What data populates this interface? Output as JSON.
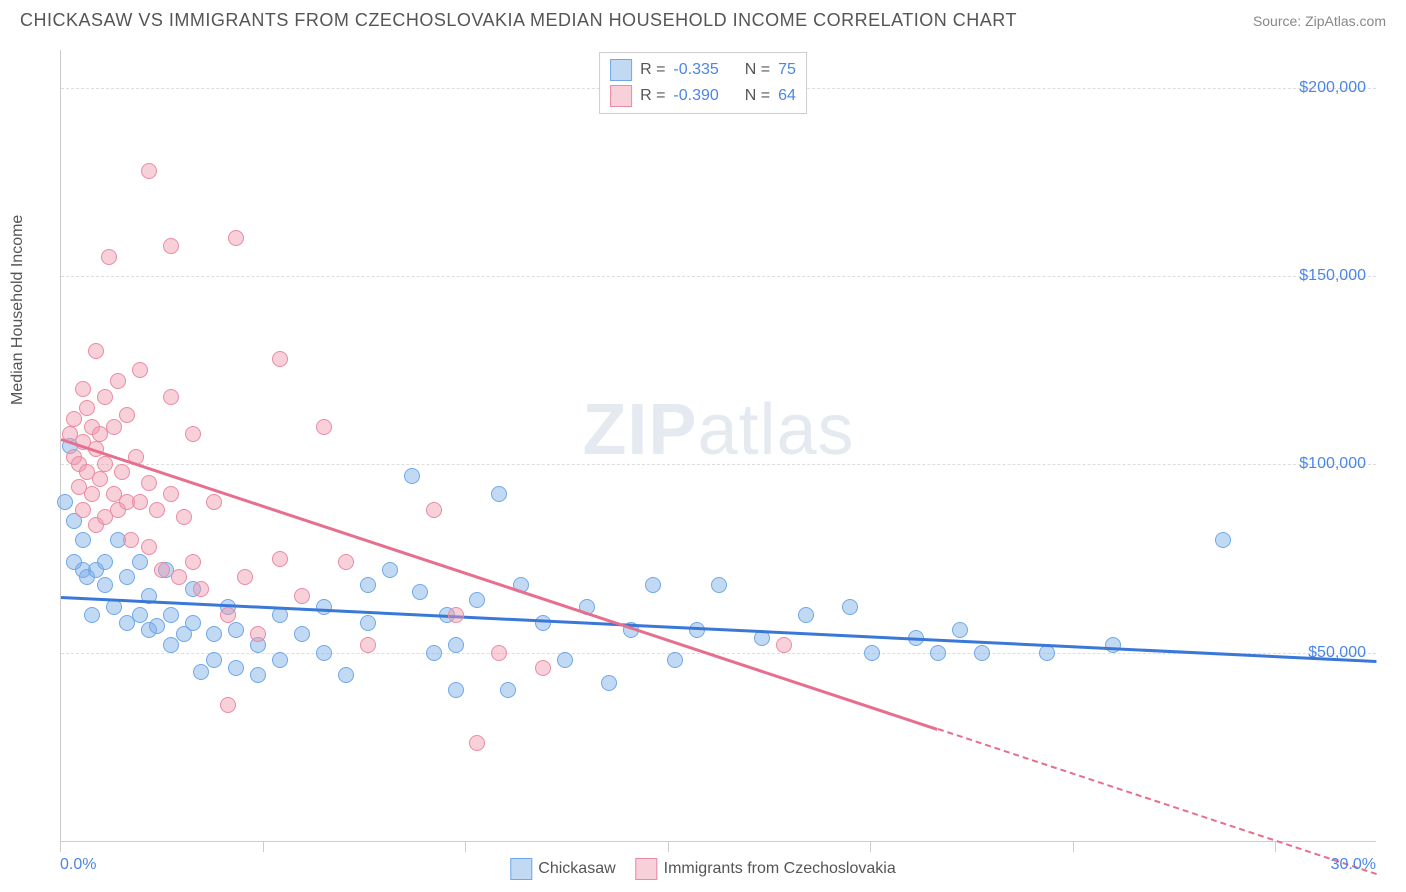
{
  "title": "CHICKASAW VS IMMIGRANTS FROM CZECHOSLOVAKIA MEDIAN HOUSEHOLD INCOME CORRELATION CHART",
  "source_label": "Source: ",
  "source_name": "ZipAtlas.com",
  "y_axis_label": "Median Household Income",
  "watermark_bold": "ZIP",
  "watermark_light": "atlas",
  "chart": {
    "type": "scatter",
    "xlim": [
      0,
      30
    ],
    "ylim": [
      0,
      210000
    ],
    "x_ticks_pct": [
      0,
      15.4,
      30.8,
      46.2,
      61.6,
      77.0,
      92.4
    ],
    "x_label_min": "0.0%",
    "x_label_max": "30.0%",
    "y_grid": [
      {
        "value": 50000,
        "label": "$50,000"
      },
      {
        "value": 100000,
        "label": "$100,000"
      },
      {
        "value": 150000,
        "label": "$150,000"
      },
      {
        "value": 200000,
        "label": "$200,000"
      }
    ],
    "background_color": "#ffffff",
    "grid_color": "#dddddd",
    "axis_color": "#cccccc",
    "tick_label_color": "#4a86e8",
    "series": [
      {
        "name": "Chickasaw",
        "fill": "rgba(120,170,230,0.45)",
        "stroke": "#6fa8e8",
        "line_color": "#3a78d8",
        "r_label": "R =",
        "n_label": "N =",
        "R": "-0.335",
        "N": "75",
        "marker_size": 16,
        "trend": {
          "x1": 0,
          "y1": 65000,
          "x2": 30,
          "y2": 48000
        },
        "points": [
          [
            0.1,
            90000
          ],
          [
            0.2,
            105000
          ],
          [
            0.3,
            85000
          ],
          [
            0.3,
            74000
          ],
          [
            0.5,
            80000
          ],
          [
            0.5,
            72000
          ],
          [
            0.6,
            70000
          ],
          [
            0.7,
            60000
          ],
          [
            0.8,
            72000
          ],
          [
            1.0,
            74000
          ],
          [
            1.0,
            68000
          ],
          [
            1.2,
            62000
          ],
          [
            1.3,
            80000
          ],
          [
            1.5,
            70000
          ],
          [
            1.5,
            58000
          ],
          [
            1.8,
            74000
          ],
          [
            1.8,
            60000
          ],
          [
            2.0,
            65000
          ],
          [
            2.0,
            56000
          ],
          [
            2.2,
            57000
          ],
          [
            2.4,
            72000
          ],
          [
            2.5,
            60000
          ],
          [
            2.5,
            52000
          ],
          [
            2.8,
            55000
          ],
          [
            3.0,
            67000
          ],
          [
            3.0,
            58000
          ],
          [
            3.2,
            45000
          ],
          [
            3.5,
            55000
          ],
          [
            3.5,
            48000
          ],
          [
            3.8,
            62000
          ],
          [
            4.0,
            56000
          ],
          [
            4.0,
            46000
          ],
          [
            4.5,
            52000
          ],
          [
            4.5,
            44000
          ],
          [
            5.0,
            60000
          ],
          [
            5.0,
            48000
          ],
          [
            5.5,
            55000
          ],
          [
            6.0,
            62000
          ],
          [
            6.0,
            50000
          ],
          [
            6.5,
            44000
          ],
          [
            7.0,
            68000
          ],
          [
            7.0,
            58000
          ],
          [
            7.5,
            72000
          ],
          [
            8.0,
            97000
          ],
          [
            8.2,
            66000
          ],
          [
            8.5,
            50000
          ],
          [
            8.8,
            60000
          ],
          [
            9.0,
            52000
          ],
          [
            9.0,
            40000
          ],
          [
            9.5,
            64000
          ],
          [
            10.0,
            92000
          ],
          [
            10.2,
            40000
          ],
          [
            10.5,
            68000
          ],
          [
            11.0,
            58000
          ],
          [
            11.5,
            48000
          ],
          [
            12.0,
            62000
          ],
          [
            12.5,
            42000
          ],
          [
            13.0,
            56000
          ],
          [
            13.5,
            68000
          ],
          [
            14.0,
            48000
          ],
          [
            14.5,
            56000
          ],
          [
            15.0,
            68000
          ],
          [
            16.0,
            54000
          ],
          [
            17.0,
            60000
          ],
          [
            18.0,
            62000
          ],
          [
            18.5,
            50000
          ],
          [
            19.5,
            54000
          ],
          [
            20.0,
            50000
          ],
          [
            20.5,
            56000
          ],
          [
            21.0,
            50000
          ],
          [
            22.5,
            50000
          ],
          [
            24.0,
            52000
          ],
          [
            26.5,
            80000
          ]
        ]
      },
      {
        "name": "Immigrants from Czechoslovakia",
        "fill": "rgba(240,150,170,0.45)",
        "stroke": "#e98ba3",
        "line_color": "#e76f8e",
        "r_label": "R =",
        "n_label": "N =",
        "R": "-0.390",
        "N": "64",
        "marker_size": 16,
        "trend": {
          "x1": 0,
          "y1": 107000,
          "x2": 20,
          "y2": 30000,
          "dash_to_x": 30,
          "dash_to_y": -8500
        },
        "points": [
          [
            0.2,
            108000
          ],
          [
            0.3,
            102000
          ],
          [
            0.3,
            112000
          ],
          [
            0.4,
            100000
          ],
          [
            0.4,
            94000
          ],
          [
            0.5,
            120000
          ],
          [
            0.5,
            106000
          ],
          [
            0.5,
            88000
          ],
          [
            0.6,
            115000
          ],
          [
            0.6,
            98000
          ],
          [
            0.7,
            110000
          ],
          [
            0.7,
            92000
          ],
          [
            0.8,
            130000
          ],
          [
            0.8,
            104000
          ],
          [
            0.8,
            84000
          ],
          [
            0.9,
            108000
          ],
          [
            0.9,
            96000
          ],
          [
            1.0,
            118000
          ],
          [
            1.0,
            100000
          ],
          [
            1.0,
            86000
          ],
          [
            1.1,
            155000
          ],
          [
            1.2,
            110000
          ],
          [
            1.2,
            92000
          ],
          [
            1.3,
            122000
          ],
          [
            1.3,
            88000
          ],
          [
            1.4,
            98000
          ],
          [
            1.5,
            113000
          ],
          [
            1.5,
            90000
          ],
          [
            1.6,
            80000
          ],
          [
            1.7,
            102000
          ],
          [
            1.8,
            125000
          ],
          [
            1.8,
            90000
          ],
          [
            2.0,
            178000
          ],
          [
            2.0,
            95000
          ],
          [
            2.0,
            78000
          ],
          [
            2.2,
            88000
          ],
          [
            2.3,
            72000
          ],
          [
            2.5,
            158000
          ],
          [
            2.5,
            118000
          ],
          [
            2.5,
            92000
          ],
          [
            2.7,
            70000
          ],
          [
            2.8,
            86000
          ],
          [
            3.0,
            108000
          ],
          [
            3.0,
            74000
          ],
          [
            3.2,
            67000
          ],
          [
            3.5,
            90000
          ],
          [
            3.8,
            60000
          ],
          [
            3.8,
            36000
          ],
          [
            4.0,
            160000
          ],
          [
            4.2,
            70000
          ],
          [
            4.5,
            55000
          ],
          [
            5.0,
            128000
          ],
          [
            5.0,
            75000
          ],
          [
            5.5,
            65000
          ],
          [
            6.0,
            110000
          ],
          [
            6.5,
            74000
          ],
          [
            7.0,
            52000
          ],
          [
            8.5,
            88000
          ],
          [
            9.0,
            60000
          ],
          [
            9.5,
            26000
          ],
          [
            10.0,
            50000
          ],
          [
            11.0,
            46000
          ],
          [
            16.5,
            52000
          ]
        ]
      }
    ]
  }
}
